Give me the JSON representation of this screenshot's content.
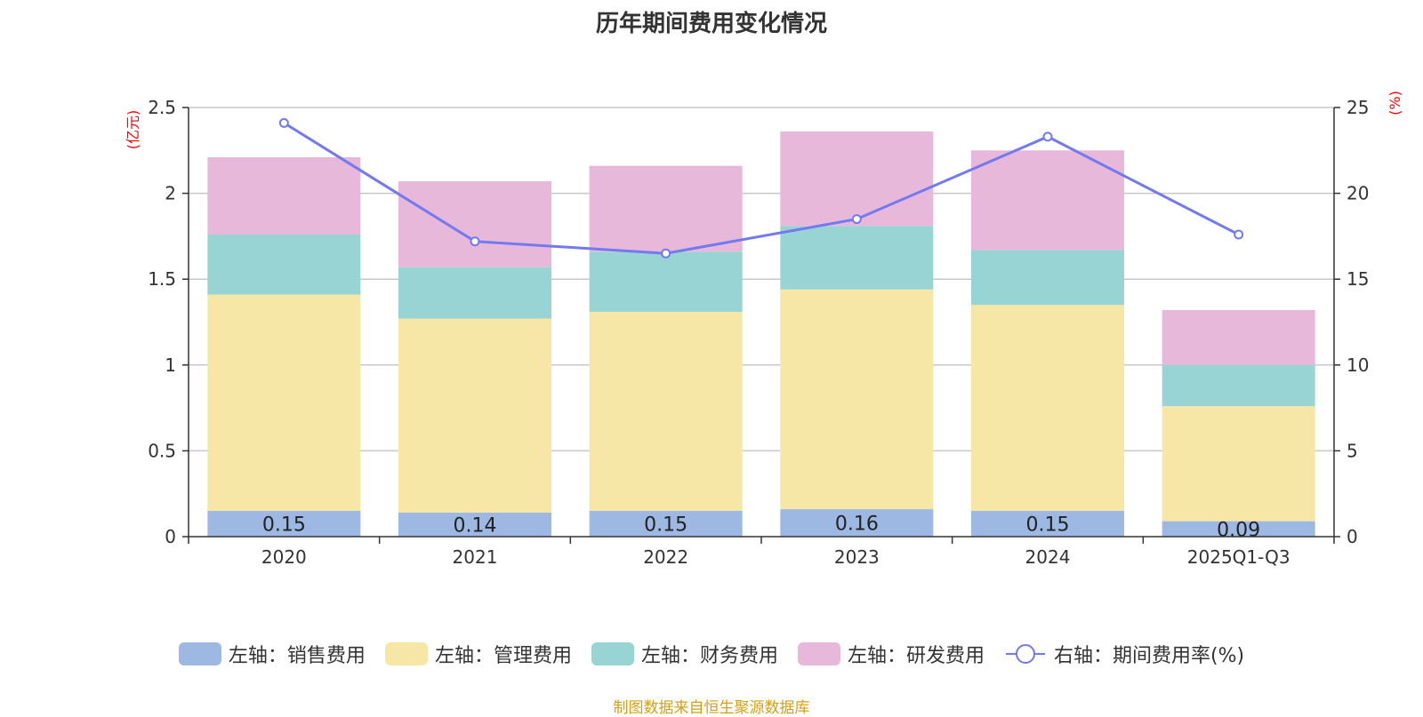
{
  "chart_data": {
    "type": "bar",
    "stacked": true,
    "title": "历年期间费用变化情况",
    "categories": [
      "2020",
      "2021",
      "2022",
      "2023",
      "2024",
      "2025Q1-Q3"
    ],
    "left_axis": {
      "unit": "(亿元)",
      "ylim": [
        0,
        2.5
      ],
      "ticks": [
        "0",
        "0.5",
        "1",
        "1.5",
        "2",
        "2.5"
      ]
    },
    "right_axis": {
      "unit": "(%)",
      "ylim": [
        0,
        25
      ],
      "ticks": [
        "0",
        "5",
        "10",
        "15",
        "20",
        "25"
      ]
    },
    "series": [
      {
        "name": "左轴：销售费用",
        "axis": "left",
        "color": "#9db8e2",
        "values": [
          0.15,
          0.14,
          0.15,
          0.16,
          0.15,
          0.09
        ],
        "labels": [
          "0.15",
          "0.14",
          "0.15",
          "0.16",
          "0.15",
          "0.09"
        ]
      },
      {
        "name": "左轴：管理费用",
        "axis": "left",
        "color": "#f7e7a7",
        "values": [
          1.26,
          1.13,
          1.16,
          1.28,
          1.2,
          0.67
        ]
      },
      {
        "name": "左轴：财务费用",
        "axis": "left",
        "color": "#98d4d4",
        "values": [
          0.35,
          0.3,
          0.35,
          0.37,
          0.32,
          0.24
        ]
      },
      {
        "name": "左轴：研发费用",
        "axis": "left",
        "color": "#e7b8d9",
        "values": [
          0.45,
          0.5,
          0.5,
          0.55,
          0.58,
          0.32
        ]
      }
    ],
    "line": {
      "name": "右轴：期间费用率(%)",
      "axis": "right",
      "color": "#7379f0",
      "values": [
        24.1,
        17.2,
        16.5,
        18.5,
        23.3,
        17.6
      ]
    },
    "grid": true,
    "legend_position": "bottom"
  },
  "source_text": "制图数据来自恒生聚源数据库"
}
